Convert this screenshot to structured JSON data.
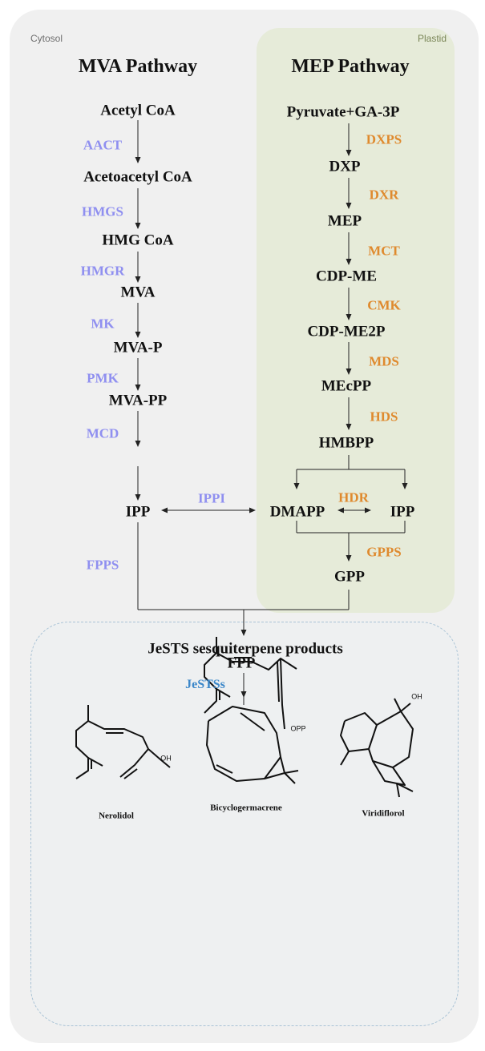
{
  "regions": {
    "cytosol": "Cytosol",
    "plastid": "Plastid"
  },
  "mva": {
    "title": "MVA Pathway",
    "metabolites": [
      "Acetyl CoA",
      "Acetoacetyl CoA",
      "HMG CoA",
      "MVA",
      "MVA-P",
      "MVA-PP",
      "IPP"
    ],
    "enzymes": [
      "AACT",
      "HMGS",
      "HMGR",
      "MK",
      "PMK",
      "MCD",
      "FPPS"
    ]
  },
  "mep": {
    "title": "MEP Pathway",
    "metabolites": [
      "Pyruvate+GA-3P",
      "DXP",
      "MEP",
      "CDP-ME",
      "CDP-ME2P",
      "MEcPP",
      "HMBPP",
      "DMAPP",
      "IPP",
      "GPP"
    ],
    "enzymes": [
      "DXPS",
      "DXR",
      "MCT",
      "CMK",
      "MDS",
      "HDS",
      "HDR",
      "GPPS"
    ]
  },
  "ippi": "IPPI",
  "fpp": {
    "label": "FPP",
    "group": "OPP"
  },
  "jests": "JeSTSs",
  "products": {
    "title": "JeSTS sesquiterpene products",
    "oh": "OH",
    "items": [
      "Nerolidol",
      "Bicyclogermacrene",
      "Viridiflorol"
    ]
  },
  "colors": {
    "mva_enzyme": "#8f8ff0",
    "mep_enzyme": "#df8a2e",
    "jests": "#3b87c9"
  }
}
